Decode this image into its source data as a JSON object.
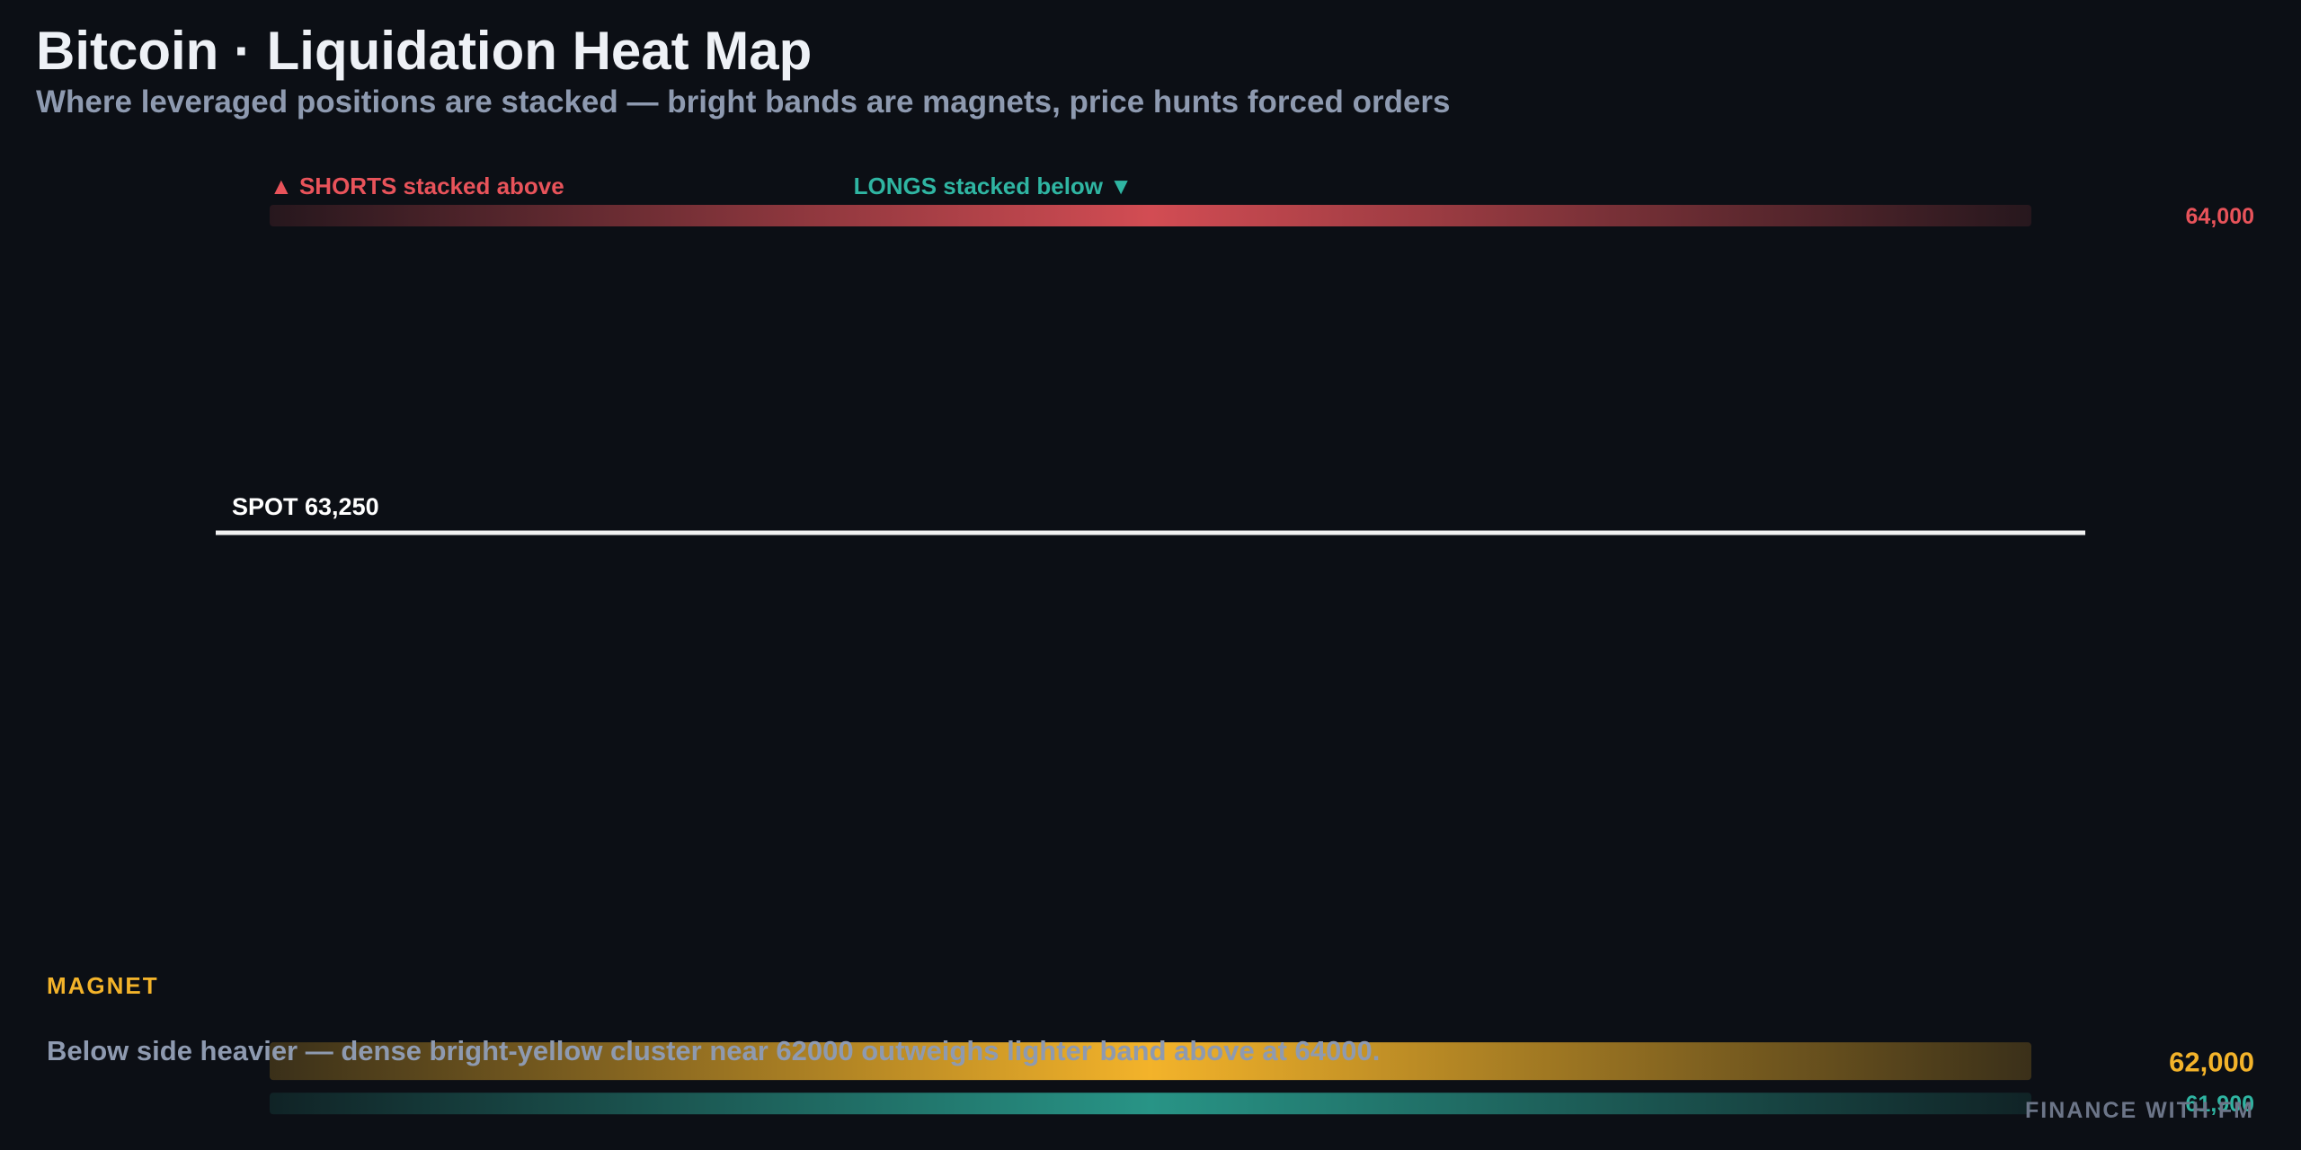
{
  "header": {
    "title": "Bitcoin · Liquidation Heat Map",
    "subtitle": "Where leveraged positions are stacked — bright bands are magnets, price hunts forced orders"
  },
  "legend": {
    "shorts": "▲ SHORTS stacked above",
    "longs": "LONGS stacked below ▼"
  },
  "magnet_label": "MAGNET",
  "note": "Below side heavier — dense bright-yellow cluster near 62000 outweighs lighter band above at 64000.",
  "brand": "FINANCE WITH FM",
  "colors": {
    "background": "#0c0f15",
    "shorts": "#e8535a",
    "longs": "#2fb5a2",
    "magnet": "#f3b32a",
    "spot": "#f2f2f2"
  },
  "chart_data": {
    "type": "heatmap",
    "spot": {
      "label": "SPOT 63,250",
      "price": 63250
    },
    "bands": [
      {
        "price": 64000,
        "label": "64,000",
        "side": "shorts",
        "intensity": 0.55
      },
      {
        "price": 62000,
        "label": "62,000",
        "side": "magnet",
        "intensity": 1.0
      },
      {
        "price": 61900,
        "label": "61,900",
        "side": "longs",
        "intensity": 0.5
      }
    ],
    "ylim": [
      61790,
      64510
    ]
  }
}
